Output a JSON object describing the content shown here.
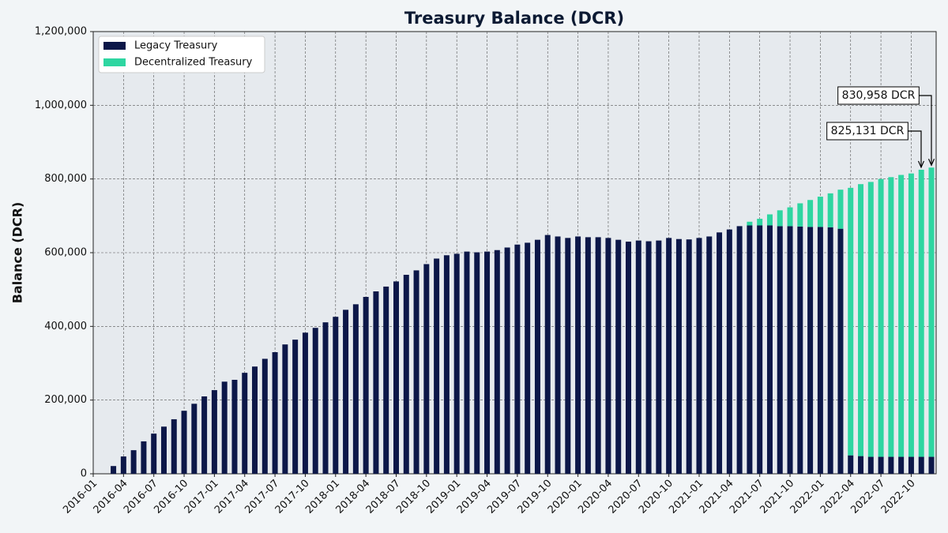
{
  "chart_data": {
    "type": "stacked_bar",
    "title": "Treasury Balance (DCR)",
    "y_label": "Balance (DCR)",
    "categories": [
      "2016-01",
      null,
      null,
      "2016-04",
      null,
      null,
      "2016-07",
      null,
      null,
      "2016-10",
      null,
      null,
      "2017-01",
      null,
      null,
      "2017-04",
      null,
      null,
      "2017-07",
      null,
      null,
      "2017-10",
      null,
      null,
      "2018-01",
      null,
      null,
      "2018-04",
      null,
      null,
      "2018-07",
      null,
      null,
      "2018-10",
      null,
      null,
      "2019-01",
      null,
      null,
      "2019-04",
      null,
      null,
      "2019-07",
      null,
      null,
      "2019-10",
      null,
      null,
      "2020-01",
      null,
      null,
      "2020-04",
      null,
      null,
      "2020-07",
      null,
      null,
      "2020-10",
      null,
      null,
      "2021-01",
      null,
      null,
      "2021-04",
      null,
      null,
      "2021-07",
      null,
      null,
      "2021-10",
      null,
      null,
      "2022-01",
      null,
      null,
      "2022-04",
      null,
      null,
      "2022-07",
      null,
      null,
      "2022-10",
      null,
      null
    ],
    "series": [
      {
        "name": "Legacy Treasury",
        "color": "#0c1748",
        "values": [
          null,
          null,
          21000,
          47000,
          64000,
          88000,
          109000,
          128000,
          148000,
          171000,
          190000,
          210000,
          227000,
          250000,
          255000,
          274000,
          291000,
          312000,
          330000,
          351000,
          364000,
          383000,
          396000,
          411000,
          426000,
          445000,
          460000,
          480000,
          495000,
          508000,
          522000,
          540000,
          552000,
          569000,
          584000,
          593000,
          597000,
          603000,
          601000,
          603000,
          607000,
          614000,
          622000,
          627000,
          635000,
          648000,
          644000,
          640000,
          644000,
          642000,
          642000,
          640000,
          635000,
          630000,
          633000,
          631000,
          633000,
          640000,
          637000,
          636000,
          640000,
          644000,
          655000,
          663000,
          672000,
          674000,
          674000,
          674000,
          672000,
          672000,
          671000,
          670000,
          670000,
          669000,
          665000,
          50000,
          48000,
          46000,
          46000,
          46000,
          46000,
          46000,
          46000,
          46000
        ]
      },
      {
        "name": "Decentralized Treasury",
        "color": "#2ed6a1",
        "values": [
          null,
          null,
          null,
          null,
          null,
          null,
          null,
          null,
          null,
          null,
          null,
          null,
          null,
          null,
          null,
          null,
          null,
          null,
          null,
          null,
          null,
          null,
          null,
          null,
          null,
          null,
          null,
          null,
          null,
          null,
          null,
          null,
          null,
          null,
          null,
          null,
          null,
          null,
          null,
          null,
          null,
          null,
          null,
          null,
          null,
          null,
          null,
          null,
          null,
          null,
          null,
          null,
          null,
          null,
          null,
          null,
          null,
          null,
          null,
          null,
          null,
          null,
          null,
          null,
          null,
          10000,
          18000,
          30000,
          43000,
          51000,
          63000,
          73000,
          82000,
          92000,
          106000,
          726000,
          738000,
          746000,
          754000,
          759000,
          765000,
          769000,
          779131,
          784958
        ]
      }
    ],
    "annotations": [
      "825,131 DCR",
      "830,958 DCR"
    ],
    "ylim": [
      0,
      1200000
    ],
    "yticks": [
      0,
      {
        "value": 200000,
        "label": "200,000"
      },
      {
        "value": 400000,
        "label": "400,000"
      },
      {
        "value": 600000,
        "label": "600,000"
      },
      {
        "value": 800000,
        "label": "800,000"
      },
      {
        "value": 1000000,
        "label": "1,000,000"
      },
      {
        "value": 1200000,
        "label": "1,200,000"
      }
    ],
    "grid": true,
    "legend": "upper-left"
  }
}
